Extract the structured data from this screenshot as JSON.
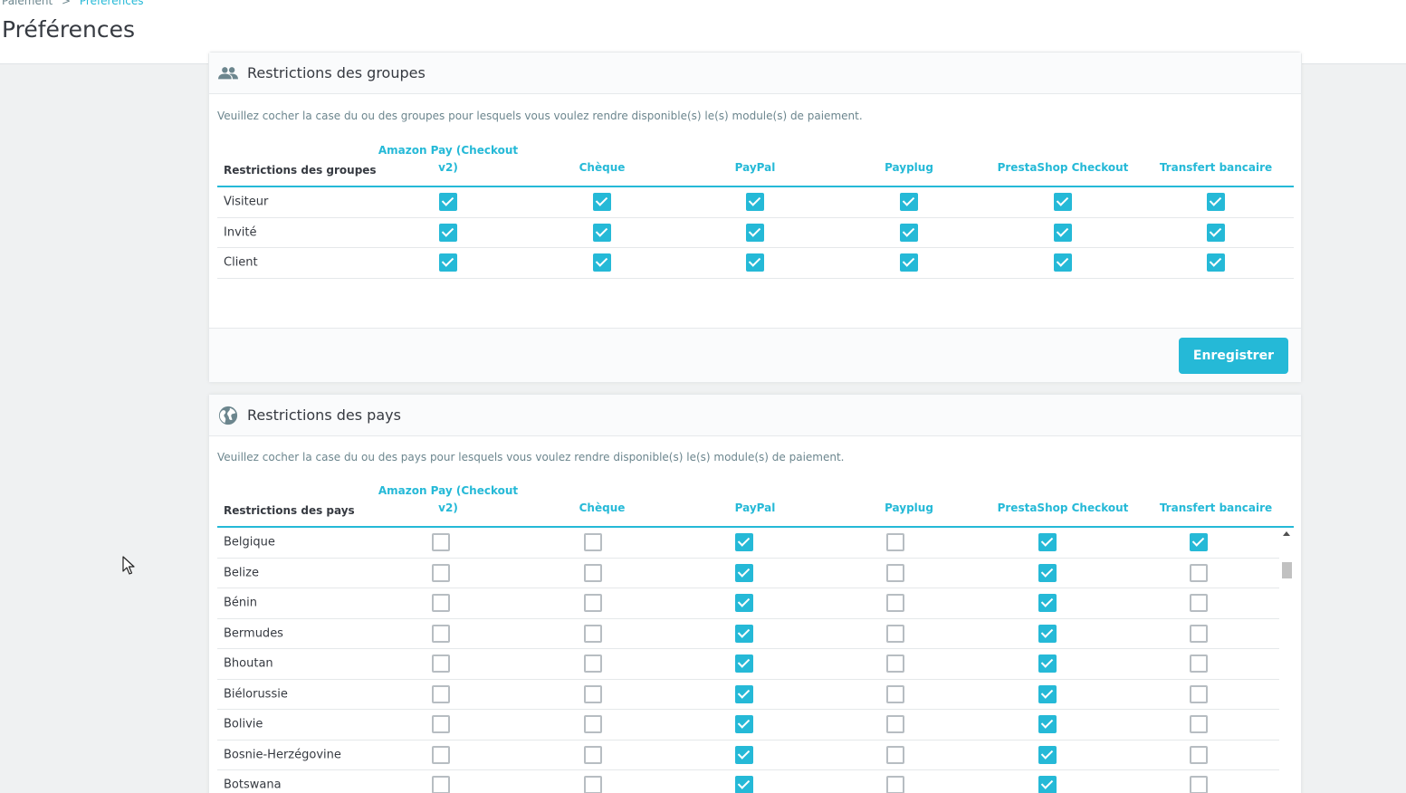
{
  "breadcrumb": {
    "parent": "Paiement",
    "separator": ">",
    "current": "Préférences"
  },
  "page_title": "Préférences",
  "modules": [
    "Amazon Pay (Checkout v2)",
    "Chèque",
    "PayPal",
    "Payplug",
    "PrestaShop Checkout",
    "Transfert bancaire"
  ],
  "groups_panel": {
    "title": "Restrictions des groupes",
    "icon": "people-icon",
    "description": "Veuillez cocher la case du ou des groupes pour lesquels vous voulez rendre disponible(s) le(s) module(s) de paiement.",
    "first_col_header": "Restrictions des groupes",
    "rows": [
      {
        "label": "Visiteur",
        "checks": [
          true,
          true,
          true,
          true,
          true,
          true
        ]
      },
      {
        "label": "Invité",
        "checks": [
          true,
          true,
          true,
          true,
          true,
          true
        ]
      },
      {
        "label": "Client",
        "checks": [
          true,
          true,
          true,
          true,
          true,
          true
        ]
      }
    ],
    "save_label": "Enregistrer"
  },
  "countries_panel": {
    "title": "Restrictions des pays",
    "icon": "globe-icon",
    "description": "Veuillez cocher la case du ou des pays pour lesquels vous voulez rendre disponible(s) le(s) module(s) de paiement.",
    "first_col_header": "Restrictions des pays",
    "rows": [
      {
        "label": "Belgique",
        "checks": [
          false,
          false,
          true,
          false,
          true,
          true
        ]
      },
      {
        "label": "Belize",
        "checks": [
          false,
          false,
          true,
          false,
          true,
          false
        ]
      },
      {
        "label": "Bénin",
        "checks": [
          false,
          false,
          true,
          false,
          true,
          false
        ]
      },
      {
        "label": "Bermudes",
        "checks": [
          false,
          false,
          true,
          false,
          true,
          false
        ]
      },
      {
        "label": "Bhoutan",
        "checks": [
          false,
          false,
          true,
          false,
          true,
          false
        ]
      },
      {
        "label": "Biélorussie",
        "checks": [
          false,
          false,
          true,
          false,
          true,
          false
        ]
      },
      {
        "label": "Bolivie",
        "checks": [
          false,
          false,
          true,
          false,
          true,
          false
        ]
      },
      {
        "label": "Bosnie-Herzégovine",
        "checks": [
          false,
          false,
          true,
          false,
          true,
          false
        ]
      },
      {
        "label": "Botswana",
        "checks": [
          false,
          false,
          true,
          false,
          true,
          false
        ]
      }
    ]
  },
  "colors": {
    "accent": "#25b9d7",
    "text": "#363a41",
    "muted": "#6c868e",
    "background": "#eff1f2"
  }
}
